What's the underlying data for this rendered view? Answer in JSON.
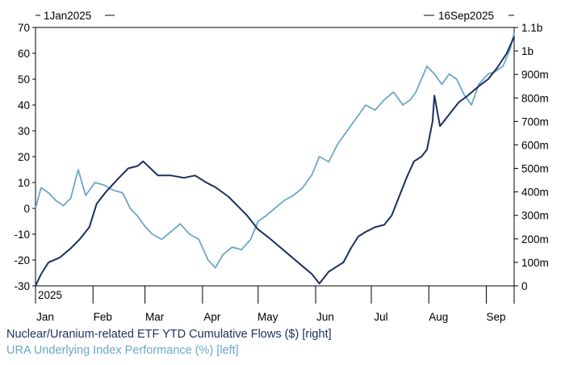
{
  "chart_data": {
    "type": "line",
    "start_label": "1Jan2025",
    "end_label": "16Sep2025",
    "year_label": "2025",
    "x_tick_labels": [
      "Jan",
      "Feb",
      "Mar",
      "Apr",
      "May",
      "Jun",
      "Jul",
      "Aug",
      "Sep"
    ],
    "x_ticks": [
      "2025-01-01",
      "2025-02-01",
      "2025-03-01",
      "2025-04-01",
      "2025-05-01",
      "2025-06-01",
      "2025-07-01",
      "2025-08-01",
      "2025-09-01"
    ],
    "xlim": [
      "2025-01-01",
      "2025-09-16"
    ],
    "y_left": {
      "ylim": [
        -30,
        70
      ],
      "ticks": [
        -30,
        -20,
        -10,
        0,
        10,
        20,
        30,
        40,
        50,
        60,
        70
      ]
    },
    "y_right": {
      "ylim": [
        0,
        1100000000
      ],
      "ticks": [
        0,
        100000000,
        200000000,
        300000000,
        400000000,
        500000000,
        600000000,
        700000000,
        800000000,
        900000000,
        1000000000,
        1100000000
      ],
      "tick_labels": [
        "0",
        "100m",
        "200m",
        "300m",
        "400m",
        "500m",
        "600m",
        "700m",
        "800m",
        "900m",
        "1b",
        "1.1b"
      ]
    },
    "grid": false,
    "series": [
      {
        "name": "Nuclear/Uranium-related ETF YTD Cumulative Flows ($) [right]",
        "axis": "right",
        "color": "#1b2f5e",
        "points": [
          [
            "2025-01-01",
            0
          ],
          [
            "2025-01-04",
            50000000
          ],
          [
            "2025-01-08",
            100000000
          ],
          [
            "2025-01-14",
            120000000
          ],
          [
            "2025-01-20",
            160000000
          ],
          [
            "2025-01-25",
            200000000
          ],
          [
            "2025-01-30",
            250000000
          ],
          [
            "2025-02-03",
            350000000
          ],
          [
            "2025-02-08",
            400000000
          ],
          [
            "2025-02-15",
            460000000
          ],
          [
            "2025-02-20",
            500000000
          ],
          [
            "2025-02-25",
            510000000
          ],
          [
            "2025-02-28",
            530000000
          ],
          [
            "2025-03-04",
            500000000
          ],
          [
            "2025-03-08",
            470000000
          ],
          [
            "2025-03-15",
            470000000
          ],
          [
            "2025-03-22",
            460000000
          ],
          [
            "2025-03-28",
            470000000
          ],
          [
            "2025-04-03",
            440000000
          ],
          [
            "2025-04-08",
            420000000
          ],
          [
            "2025-04-15",
            380000000
          ],
          [
            "2025-04-20",
            340000000
          ],
          [
            "2025-04-25",
            300000000
          ],
          [
            "2025-05-01",
            240000000
          ],
          [
            "2025-05-06",
            210000000
          ],
          [
            "2025-05-12",
            170000000
          ],
          [
            "2025-05-18",
            130000000
          ],
          [
            "2025-05-24",
            90000000
          ],
          [
            "2025-05-30",
            50000000
          ],
          [
            "2025-06-03",
            10000000
          ],
          [
            "2025-06-08",
            60000000
          ],
          [
            "2025-06-12",
            80000000
          ],
          [
            "2025-06-16",
            100000000
          ],
          [
            "2025-06-20",
            160000000
          ],
          [
            "2025-06-24",
            210000000
          ],
          [
            "2025-06-28",
            230000000
          ],
          [
            "2025-07-03",
            250000000
          ],
          [
            "2025-07-08",
            260000000
          ],
          [
            "2025-07-12",
            300000000
          ],
          [
            "2025-07-16",
            380000000
          ],
          [
            "2025-07-20",
            460000000
          ],
          [
            "2025-07-24",
            530000000
          ],
          [
            "2025-07-28",
            550000000
          ],
          [
            "2025-07-31",
            580000000
          ],
          [
            "2025-08-03",
            700000000
          ],
          [
            "2025-08-04",
            810000000
          ],
          [
            "2025-08-07",
            680000000
          ],
          [
            "2025-08-12",
            730000000
          ],
          [
            "2025-08-17",
            780000000
          ],
          [
            "2025-08-22",
            810000000
          ],
          [
            "2025-08-28",
            850000000
          ],
          [
            "2025-09-02",
            880000000
          ],
          [
            "2025-09-07",
            930000000
          ],
          [
            "2025-09-12",
            990000000
          ],
          [
            "2025-09-16",
            1060000000
          ]
        ]
      },
      {
        "name": "URA Underlying Index Performance (%) [left]",
        "axis": "left",
        "color": "#6aa7c7",
        "points": [
          [
            "2025-01-01",
            0
          ],
          [
            "2025-01-04",
            8
          ],
          [
            "2025-01-08",
            6
          ],
          [
            "2025-01-12",
            3
          ],
          [
            "2025-01-16",
            1
          ],
          [
            "2025-01-20",
            4
          ],
          [
            "2025-01-24",
            15
          ],
          [
            "2025-01-28",
            5
          ],
          [
            "2025-02-02",
            10
          ],
          [
            "2025-02-07",
            9
          ],
          [
            "2025-02-12",
            7
          ],
          [
            "2025-02-17",
            6
          ],
          [
            "2025-02-21",
            0
          ],
          [
            "2025-02-25",
            -3
          ],
          [
            "2025-03-01",
            -7
          ],
          [
            "2025-03-05",
            -10
          ],
          [
            "2025-03-10",
            -12
          ],
          [
            "2025-03-15",
            -9
          ],
          [
            "2025-03-20",
            -6
          ],
          [
            "2025-03-25",
            -10
          ],
          [
            "2025-03-30",
            -12
          ],
          [
            "2025-04-04",
            -20
          ],
          [
            "2025-04-08",
            -23
          ],
          [
            "2025-04-12",
            -18
          ],
          [
            "2025-04-17",
            -15
          ],
          [
            "2025-04-22",
            -16
          ],
          [
            "2025-04-27",
            -12
          ],
          [
            "2025-05-01",
            -5
          ],
          [
            "2025-05-05",
            -3
          ],
          [
            "2025-05-10",
            0
          ],
          [
            "2025-05-15",
            3
          ],
          [
            "2025-05-20",
            5
          ],
          [
            "2025-05-25",
            8
          ],
          [
            "2025-05-30",
            13
          ],
          [
            "2025-06-03",
            20
          ],
          [
            "2025-06-08",
            18
          ],
          [
            "2025-06-13",
            25
          ],
          [
            "2025-06-18",
            30
          ],
          [
            "2025-06-23",
            35
          ],
          [
            "2025-06-28",
            40
          ],
          [
            "2025-07-03",
            38
          ],
          [
            "2025-07-08",
            42
          ],
          [
            "2025-07-13",
            45
          ],
          [
            "2025-07-18",
            40
          ],
          [
            "2025-07-22",
            42
          ],
          [
            "2025-07-25",
            45
          ],
          [
            "2025-07-28",
            50
          ],
          [
            "2025-07-31",
            55
          ],
          [
            "2025-08-04",
            52
          ],
          [
            "2025-08-08",
            48
          ],
          [
            "2025-08-12",
            52
          ],
          [
            "2025-08-16",
            50
          ],
          [
            "2025-08-20",
            44
          ],
          [
            "2025-08-24",
            40
          ],
          [
            "2025-08-28",
            48
          ],
          [
            "2025-09-02",
            52
          ],
          [
            "2025-09-06",
            53
          ],
          [
            "2025-09-10",
            55
          ],
          [
            "2025-09-14",
            62
          ],
          [
            "2025-09-16",
            68
          ]
        ]
      }
    ]
  }
}
